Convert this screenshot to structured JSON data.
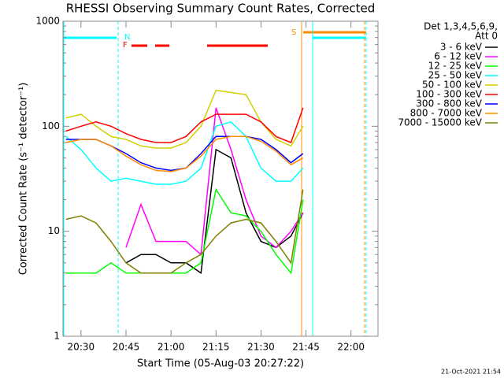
{
  "chart_data": {
    "type": "line",
    "title": "RHESSI Observing Summary Count Rates, Corrected",
    "x_label": "Start Time (05-Aug-03 20:27:22)",
    "y_label": "Corrected Count Rate (s⁻¹ detector⁻¹)",
    "legend_title": [
      "Det 1,3,4,5,6,9,",
      "Att 0"
    ],
    "footer": "21-Oct-2021 21:54",
    "flags": [
      "N",
      "F",
      "S"
    ],
    "log_y": true,
    "legend": "right",
    "xlim": [
      "20:24",
      "22:09"
    ],
    "xticks": [
      "20:30",
      "20:45",
      "21:00",
      "21:15",
      "21:30",
      "21:45",
      "22:00"
    ],
    "ylim": [
      1,
      1000
    ],
    "yticks": [
      1,
      10,
      100,
      1000
    ],
    "x": [
      "20:25",
      "20:30",
      "20:35",
      "20:40",
      "20:45",
      "20:50",
      "20:55",
      "21:00",
      "21:05",
      "21:10",
      "21:15",
      "21:20",
      "21:25",
      "21:30",
      "21:35",
      "21:40",
      "21:44"
    ],
    "series": [
      {
        "name": "3 - 6 keV",
        "color": "#000000",
        "values": [
          null,
          null,
          null,
          null,
          5,
          6,
          6,
          5,
          5,
          4,
          60,
          50,
          15,
          8,
          7,
          9,
          15
        ]
      },
      {
        "name": "6 - 12 keV",
        "color": "#ff00ff",
        "values": [
          null,
          null,
          null,
          null,
          7,
          18,
          8,
          8,
          8,
          6,
          150,
          60,
          20,
          9,
          7,
          10,
          15
        ]
      },
      {
        "name": "12 - 25 keV",
        "color": "#00ff00",
        "values": [
          4,
          4,
          4,
          5,
          4,
          4,
          4,
          4,
          4,
          5,
          25,
          15,
          14,
          10,
          6,
          4,
          20
        ]
      },
      {
        "name": "25 - 50 keV",
        "color": "#00ffff",
        "values": [
          80,
          60,
          40,
          30,
          32,
          30,
          28,
          28,
          30,
          40,
          100,
          110,
          80,
          40,
          30,
          30,
          40
        ]
      },
      {
        "name": "50 - 100 keV",
        "color": "#d0d000",
        "values": [
          120,
          130,
          100,
          80,
          75,
          65,
          62,
          62,
          70,
          100,
          220,
          210,
          200,
          110,
          75,
          65,
          100
        ]
      },
      {
        "name": "100 - 300 keV",
        "color": "#ff0000",
        "values": [
          90,
          100,
          110,
          100,
          85,
          75,
          70,
          70,
          80,
          110,
          130,
          130,
          130,
          110,
          80,
          70,
          150
        ]
      },
      {
        "name": "300 - 800 keV",
        "color": "#0000ff",
        "values": [
          75,
          75,
          75,
          65,
          55,
          45,
          40,
          38,
          40,
          55,
          80,
          80,
          80,
          75,
          60,
          45,
          55
        ]
      },
      {
        "name": "800 - 7000 keV",
        "color": "#ff8c00",
        "values": [
          70,
          75,
          75,
          65,
          52,
          43,
          38,
          37,
          40,
          52,
          75,
          80,
          80,
          72,
          58,
          43,
          50
        ]
      },
      {
        "name": "7000 - 15000 keV",
        "color": "#808000",
        "values": [
          13,
          14,
          12,
          8,
          5,
          4,
          4,
          4,
          5,
          6,
          9,
          12,
          13,
          12,
          8,
          5,
          25
        ]
      }
    ]
  }
}
